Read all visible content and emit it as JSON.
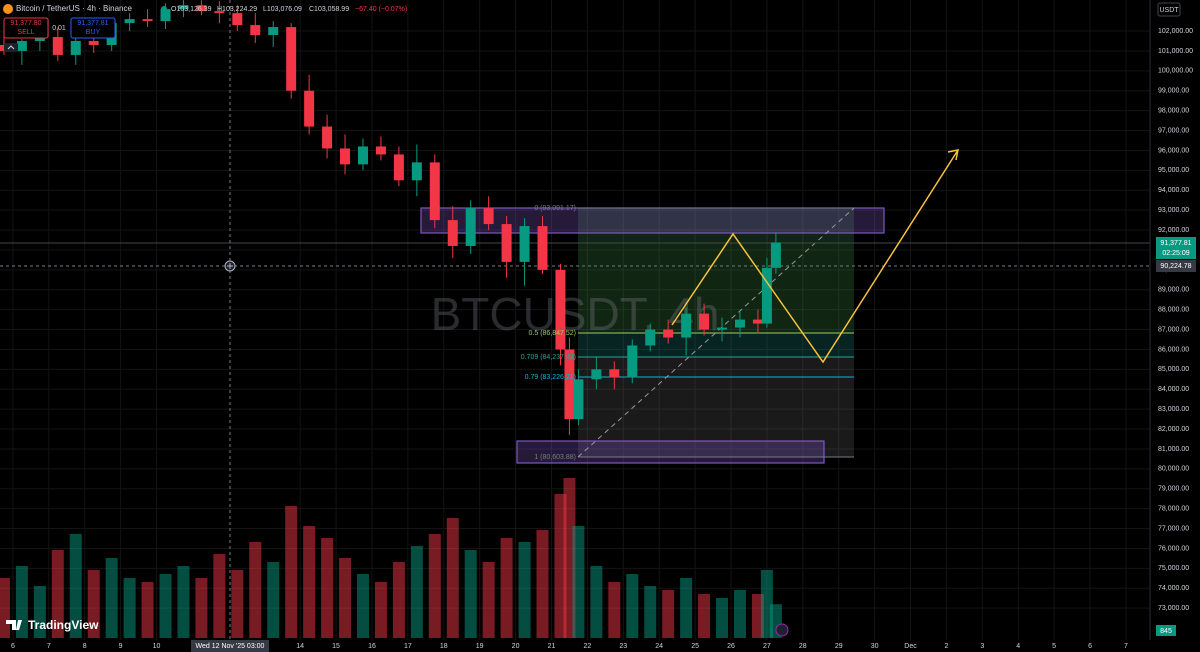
{
  "header": {
    "symbol": "Bitcoin / TetherUS · 4h · Binance",
    "open": "O103,126.39",
    "high": "H103,224.29",
    "low": "L103,076.09",
    "close": "C103,058.99",
    "change": "−67.40 (−0.07%)",
    "sell_price": "91,377.80",
    "sell": "SELL",
    "quantity": "0.01",
    "buy_price": "91,377.81",
    "buy": "BUY",
    "currency": "USDT"
  },
  "watermark": "BTCUSDT, 4h",
  "logo": "TradingView",
  "last_price_label": "91,377.81",
  "countdown": "02:25:09",
  "crosshair_price": "90,224.78",
  "crosshair_time": "Wed 12 Nov '25 03:00",
  "fib_labels": [
    "0 (93,091.17)",
    "0.5 (86,847.52)",
    "0.709 (84,237.43)",
    "0.79 (83,226.21)",
    "1 (80,603.88)"
  ],
  "chart_data": {
    "type": "candlestick",
    "up_color": "#089981",
    "down_color": "#f23645",
    "xlim": [
      5.64,
      37.67
    ],
    "ylim": [
      71400,
      103560
    ],
    "x": [
      5.75,
      6.25,
      6.75,
      7.25,
      7.75,
      8.25,
      8.75,
      9.25,
      9.75,
      10.25,
      10.75,
      11.25,
      11.75,
      12.25,
      12.75,
      13.25,
      13.75,
      14.25,
      14.75,
      15.25,
      15.75,
      16.25,
      16.75,
      17.25,
      17.75,
      18.25,
      18.75,
      19.25,
      19.75,
      20.25,
      20.75,
      21.25,
      21.5,
      21.75,
      22.25,
      22.75,
      23.25,
      23.75,
      24.25,
      24.75,
      25.25,
      25.75,
      26.25,
      26.75,
      27.0,
      27.25
    ],
    "open": [
      101300,
      101000,
      101500,
      101700,
      100800,
      101500,
      101300,
      102400,
      102600,
      102500,
      103100,
      103300,
      103000,
      102900,
      102300,
      101800,
      102200,
      99000,
      97200,
      96100,
      95300,
      96200,
      95800,
      94500,
      95400,
      92500,
      91200,
      93100,
      92300,
      90400,
      92200,
      90000,
      86000,
      82500,
      84500,
      85000,
      84600,
      86200,
      87000,
      86600,
      87800,
      87000,
      87100,
      87500,
      87300,
      90100
    ],
    "high": [
      101900,
      101600,
      102100,
      102200,
      101900,
      102000,
      102600,
      102900,
      103100,
      103400,
      103600,
      103550,
      103500,
      103300,
      102900,
      102500,
      102400,
      99800,
      97800,
      96800,
      96600,
      96700,
      96200,
      96300,
      95800,
      93200,
      93500,
      93700,
      92700,
      92600,
      92700,
      90300,
      86600,
      85000,
      85600,
      85400,
      86500,
      87300,
      87500,
      88100,
      88300,
      87600,
      87900,
      88000,
      90600,
      91900
    ],
    "low": [
      100800,
      100300,
      101000,
      100500,
      100300,
      100900,
      101000,
      102000,
      102200,
      102100,
      102700,
      102800,
      102400,
      102000,
      101400,
      101200,
      98600,
      96800,
      95600,
      94800,
      95000,
      95500,
      94200,
      93700,
      92100,
      90600,
      90800,
      92000,
      89600,
      89200,
      89800,
      85200,
      81700,
      82200,
      84000,
      84000,
      84300,
      85900,
      86300,
      85700,
      86700,
      86400,
      86600,
      86800,
      87100,
      89800
    ],
    "close": [
      101000,
      101500,
      101700,
      100800,
      101500,
      101300,
      102400,
      102600,
      102500,
      103100,
      103300,
      103000,
      102900,
      102300,
      101800,
      102200,
      99000,
      97200,
      96100,
      95300,
      96200,
      95800,
      94500,
      95400,
      92500,
      91200,
      93100,
      92300,
      90400,
      92200,
      90000,
      86000,
      82500,
      84500,
      85000,
      84600,
      86200,
      87000,
      86600,
      87800,
      87000,
      87100,
      87500,
      87300,
      90100,
      91377.81
    ],
    "volume": [
      1500,
      1800,
      1300,
      2200,
      2600,
      1700,
      2000,
      1500,
      1400,
      1600,
      1800,
      1500,
      2100,
      1700,
      2400,
      1900,
      3300,
      2800,
      2500,
      2000,
      1600,
      1400,
      1900,
      2300,
      2600,
      3000,
      2200,
      1900,
      2500,
      2400,
      2700,
      3600,
      4000,
      2800,
      1800,
      1400,
      1600,
      1300,
      1200,
      1500,
      1100,
      1000,
      1200,
      1100,
      1700,
      845
    ],
    "yticks": [
      {
        "value": 102000,
        "label": "102,000.00"
      },
      {
        "value": 101000,
        "label": "101,000.00"
      },
      {
        "value": 100000,
        "label": "100,000.00"
      },
      {
        "value": 99000,
        "label": "99,000.00"
      },
      {
        "value": 98000,
        "label": "98,000.00"
      },
      {
        "value": 97000,
        "label": "97,000.00"
      },
      {
        "value": 96000,
        "label": "96,000.00"
      },
      {
        "value": 95000,
        "label": "95,000.00"
      },
      {
        "value": 94000,
        "label": "94,000.00"
      },
      {
        "value": 93000,
        "label": "93,000.00"
      },
      {
        "value": 92000,
        "label": "92,000.00"
      },
      {
        "value": 91000,
        "label": "91,000.00"
      },
      {
        "value": 90000,
        "label": "90,000.00"
      },
      {
        "value": 89000,
        "label": "89,000.00"
      },
      {
        "value": 88000,
        "label": "88,000.00"
      },
      {
        "value": 87000,
        "label": "87,000.00"
      },
      {
        "value": 86000,
        "label": "86,000.00"
      },
      {
        "value": 85000,
        "label": "85,000.00"
      },
      {
        "value": 84000,
        "label": "84,000.00"
      },
      {
        "value": 83000,
        "label": "83,000.00"
      },
      {
        "value": 82000,
        "label": "82,000.00"
      },
      {
        "value": 81000,
        "label": "81,000.00"
      },
      {
        "value": 80000,
        "label": "80,000.00"
      },
      {
        "value": 79000,
        "label": "79,000.00"
      },
      {
        "value": 78000,
        "label": "78,000.00"
      },
      {
        "value": 77000,
        "label": "77,000.00"
      },
      {
        "value": 76000,
        "label": "76,000.00"
      },
      {
        "value": 75000,
        "label": "75,000.00"
      },
      {
        "value": 74000,
        "label": "74,000.00"
      },
      {
        "value": 73000,
        "label": "73,000.00"
      }
    ],
    "xticks": [
      6,
      7,
      8,
      9,
      10,
      14,
      15,
      16,
      17,
      18,
      19,
      20,
      21,
      22,
      23,
      24,
      25,
      26,
      27,
      28,
      29,
      30,
      {
        "value": 31,
        "label": "Dec"
      },
      {
        "value": 32,
        "label": "2"
      },
      {
        "value": 33,
        "label": "3"
      },
      {
        "value": 34,
        "label": "4"
      },
      {
        "value": 35,
        "label": "5"
      },
      {
        "value": 36,
        "label": "6"
      },
      {
        "value": 37,
        "label": "7"
      }
    ],
    "grid": true
  }
}
